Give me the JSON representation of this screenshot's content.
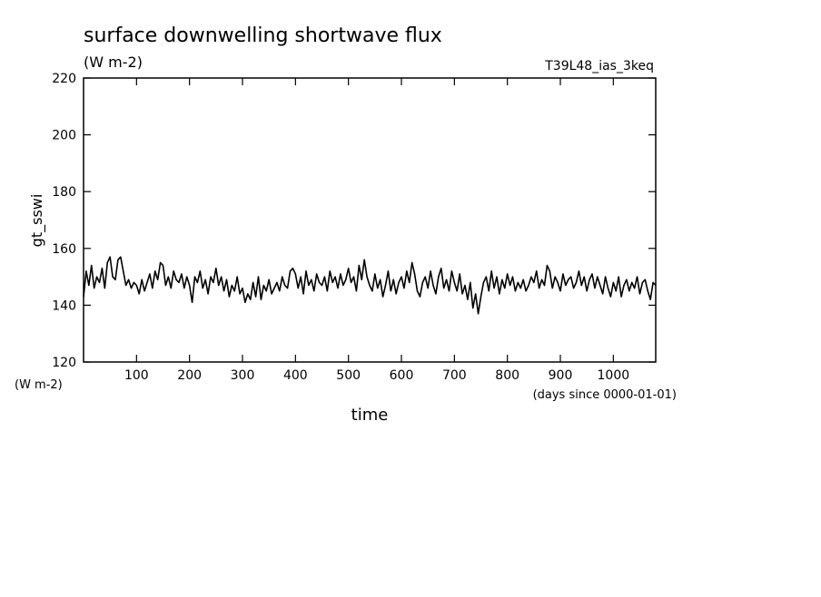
{
  "chart_data": {
    "type": "line",
    "title": "surface downwelling shortwave flux",
    "subtitle": "(W m-2)",
    "annotation": "T39L48_ias_3keq",
    "y_label": "gt_sswi",
    "y_unit": "(W m-2)",
    "x_label": "time",
    "x_unit": "(days since 0000-01-01)",
    "xlim": [
      0,
      1080
    ],
    "ylim": [
      120,
      220
    ],
    "xticks": [
      100,
      200,
      300,
      400,
      500,
      600,
      700,
      800,
      900,
      1000
    ],
    "yticks": [
      120,
      140,
      160,
      180,
      200,
      220
    ],
    "x": [
      0,
      5,
      10,
      15,
      20,
      25,
      30,
      35,
      40,
      45,
      50,
      55,
      60,
      65,
      70,
      75,
      80,
      85,
      90,
      95,
      100,
      105,
      110,
      115,
      120,
      125,
      130,
      135,
      140,
      145,
      150,
      155,
      160,
      165,
      170,
      175,
      180,
      185,
      190,
      195,
      200,
      205,
      210,
      215,
      220,
      225,
      230,
      235,
      240,
      245,
      250,
      255,
      260,
      265,
      270,
      275,
      280,
      285,
      290,
      295,
      300,
      305,
      310,
      315,
      320,
      325,
      330,
      335,
      340,
      345,
      350,
      355,
      360,
      365,
      370,
      375,
      380,
      385,
      390,
      395,
      400,
      405,
      410,
      415,
      420,
      425,
      430,
      435,
      440,
      445,
      450,
      455,
      460,
      465,
      470,
      475,
      480,
      485,
      490,
      495,
      500,
      505,
      510,
      515,
      520,
      525,
      530,
      535,
      540,
      545,
      550,
      555,
      560,
      565,
      570,
      575,
      580,
      585,
      590,
      595,
      600,
      605,
      610,
      615,
      620,
      625,
      630,
      635,
      640,
      645,
      650,
      655,
      660,
      665,
      670,
      675,
      680,
      685,
      690,
      695,
      700,
      705,
      710,
      715,
      720,
      725,
      730,
      735,
      740,
      745,
      750,
      755,
      760,
      765,
      770,
      775,
      780,
      785,
      790,
      795,
      800,
      805,
      810,
      815,
      820,
      825,
      830,
      835,
      840,
      845,
      850,
      855,
      860,
      865,
      870,
      875,
      880,
      885,
      890,
      895,
      900,
      905,
      910,
      915,
      920,
      925,
      930,
      935,
      940,
      945,
      950,
      955,
      960,
      965,
      970,
      975,
      980,
      985,
      990,
      995,
      1000,
      1005,
      1010,
      1015,
      1020,
      1025,
      1030,
      1035,
      1040,
      1045,
      1050,
      1055,
      1060,
      1065,
      1070,
      1075,
      1080
    ],
    "series": [
      {
        "color": "#000000",
        "values": [
          143,
          152,
          147,
          154,
          146,
          150,
          148,
          153,
          146,
          155,
          157,
          150,
          149,
          156,
          157,
          152,
          147,
          149,
          146,
          148,
          147,
          144,
          149,
          145,
          148,
          151,
          146,
          152,
          149,
          155,
          154,
          147,
          150,
          146,
          152,
          149,
          148,
          151,
          146,
          150,
          147,
          141,
          150,
          148,
          152,
          146,
          149,
          144,
          150,
          148,
          153,
          147,
          150,
          145,
          149,
          143,
          147,
          145,
          150,
          144,
          146,
          141,
          144,
          142,
          148,
          143,
          150,
          142,
          147,
          145,
          149,
          144,
          146,
          148,
          145,
          150,
          147,
          146,
          152,
          153,
          151,
          146,
          150,
          144,
          152,
          147,
          149,
          145,
          151,
          148,
          147,
          150,
          145,
          152,
          148,
          150,
          146,
          151,
          147,
          149,
          153,
          148,
          150,
          145,
          154,
          149,
          156,
          150,
          147,
          145,
          151,
          146,
          149,
          143,
          147,
          152,
          145,
          149,
          144,
          148,
          150,
          146,
          152,
          148,
          155,
          151,
          145,
          143,
          148,
          150,
          146,
          152,
          147,
          144,
          150,
          153,
          146,
          149,
          145,
          152,
          148,
          145,
          151,
          144,
          147,
          142,
          148,
          139,
          144,
          137,
          143,
          148,
          150,
          145,
          152,
          146,
          150,
          144,
          149,
          146,
          151,
          147,
          150,
          145,
          148,
          146,
          149,
          145,
          147,
          150,
          148,
          152,
          146,
          149,
          147,
          154,
          152,
          146,
          150,
          148,
          145,
          151,
          147,
          149,
          150,
          146,
          148,
          152,
          147,
          150,
          145,
          149,
          151,
          146,
          150,
          147,
          144,
          150,
          146,
          143,
          148,
          145,
          150,
          143,
          147,
          149,
          145,
          148,
          146,
          150,
          144,
          148,
          149,
          145,
          142,
          148,
          147
        ]
      }
    ]
  }
}
